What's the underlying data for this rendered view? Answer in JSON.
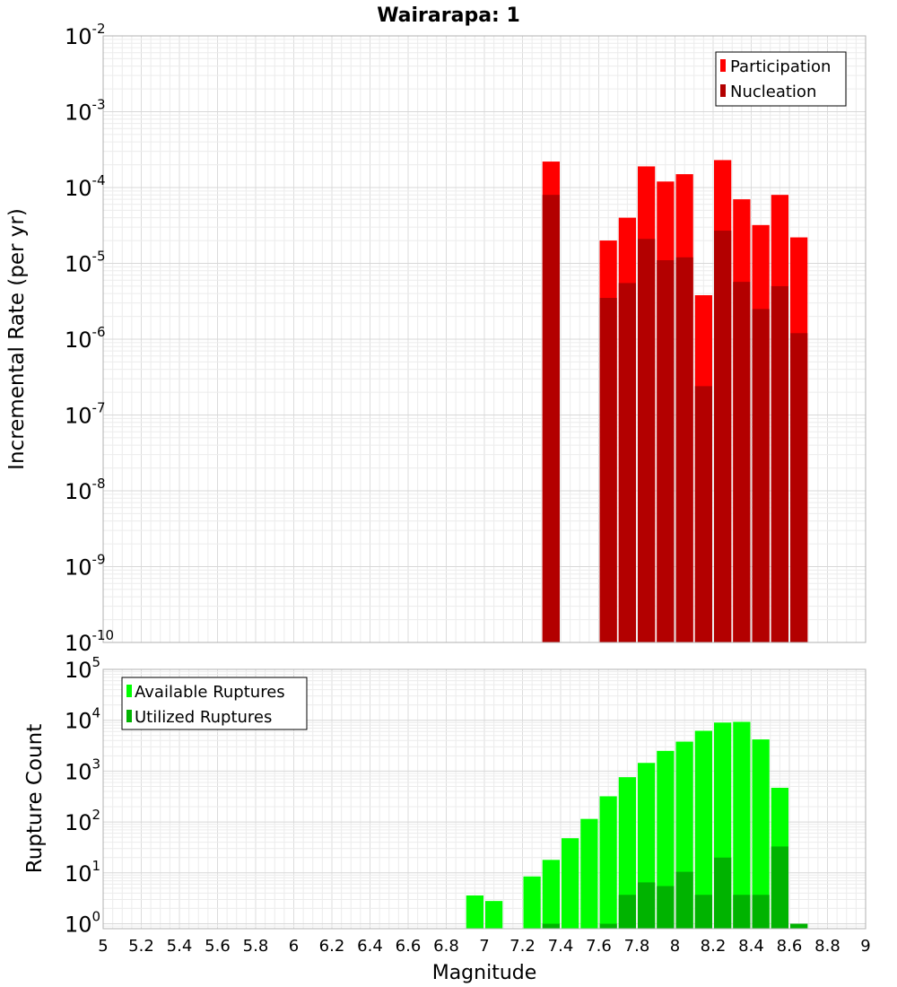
{
  "chart_data": {
    "title": "Wairarapa: 1",
    "xlabel": "Magnitude",
    "x_ticks": [
      "5",
      "5.2",
      "5.4",
      "5.6",
      "5.8",
      "6",
      "6.2",
      "6.4",
      "6.6",
      "6.8",
      "7",
      "7.2",
      "7.4",
      "7.6",
      "7.8",
      "8",
      "8.2",
      "8.4",
      "8.6",
      "8.8",
      "9"
    ],
    "xlim": [
      5,
      9
    ],
    "panels": [
      {
        "type": "bar",
        "ylabel": "Incremental Rate (per yr)",
        "yscale": "log",
        "ylim": [
          1e-10,
          0.01
        ],
        "y_tick_exponents": [
          "-10",
          "-9",
          "-8",
          "-7",
          "-6",
          "-5",
          "-4",
          "-3",
          "-2"
        ],
        "grid": true,
        "legend": "top-right",
        "series": [
          {
            "name": "Participation",
            "color": "#ff0000",
            "x": [
              7.35,
              7.65,
              7.75,
              7.85,
              7.95,
              8.05,
              8.15,
              8.25,
              8.35,
              8.45,
              8.55,
              8.65
            ],
            "values": [
              0.00022,
              2e-05,
              4e-05,
              0.00019,
              0.00012,
              0.00015,
              3.8e-06,
              0.00023,
              7e-05,
              3.2e-05,
              8e-05,
              2.2e-05
            ]
          },
          {
            "name": "Nucleation",
            "color": "#b30000",
            "x": [
              7.35,
              7.65,
              7.75,
              7.85,
              7.95,
              8.05,
              8.15,
              8.25,
              8.35,
              8.45,
              8.55,
              8.65
            ],
            "values": [
              8e-05,
              3.5e-06,
              5.5e-06,
              2.1e-05,
              1.1e-05,
              1.2e-05,
              2.4e-07,
              2.7e-05,
              5.7e-06,
              2.5e-06,
              5e-06,
              1.2e-06
            ]
          }
        ]
      },
      {
        "type": "bar",
        "ylabel": "Rupture Count",
        "yscale": "log",
        "ylim": [
          0.8,
          100000
        ],
        "y_tick_exponents": [
          "0",
          "1",
          "2",
          "3",
          "4",
          "5"
        ],
        "grid": true,
        "legend": "top-left",
        "series": [
          {
            "name": "Available Ruptures",
            "color": "#00ff00",
            "x": [
              6.95,
              7.05,
              7.25,
              7.35,
              7.45,
              7.55,
              7.65,
              7.75,
              7.85,
              7.95,
              8.05,
              8.15,
              8.25,
              8.35,
              8.45,
              8.55,
              8.65
            ],
            "values": [
              3.6,
              2.8,
              8.5,
              18,
              48,
              115,
              320,
              760,
              1450,
              2500,
              3800,
              6200,
              9000,
              9300,
              4200,
              470,
              1
            ]
          },
          {
            "name": "Utilized Ruptures",
            "color": "#00b300",
            "x": [
              7.35,
              7.65,
              7.75,
              7.85,
              7.95,
              8.05,
              8.15,
              8.25,
              8.35,
              8.45,
              8.55,
              8.65
            ],
            "values": [
              1,
              1,
              3.7,
              6.5,
              5.5,
              10.5,
              3.7,
              20,
              3.7,
              3.7,
              33,
              1
            ]
          }
        ]
      }
    ]
  }
}
